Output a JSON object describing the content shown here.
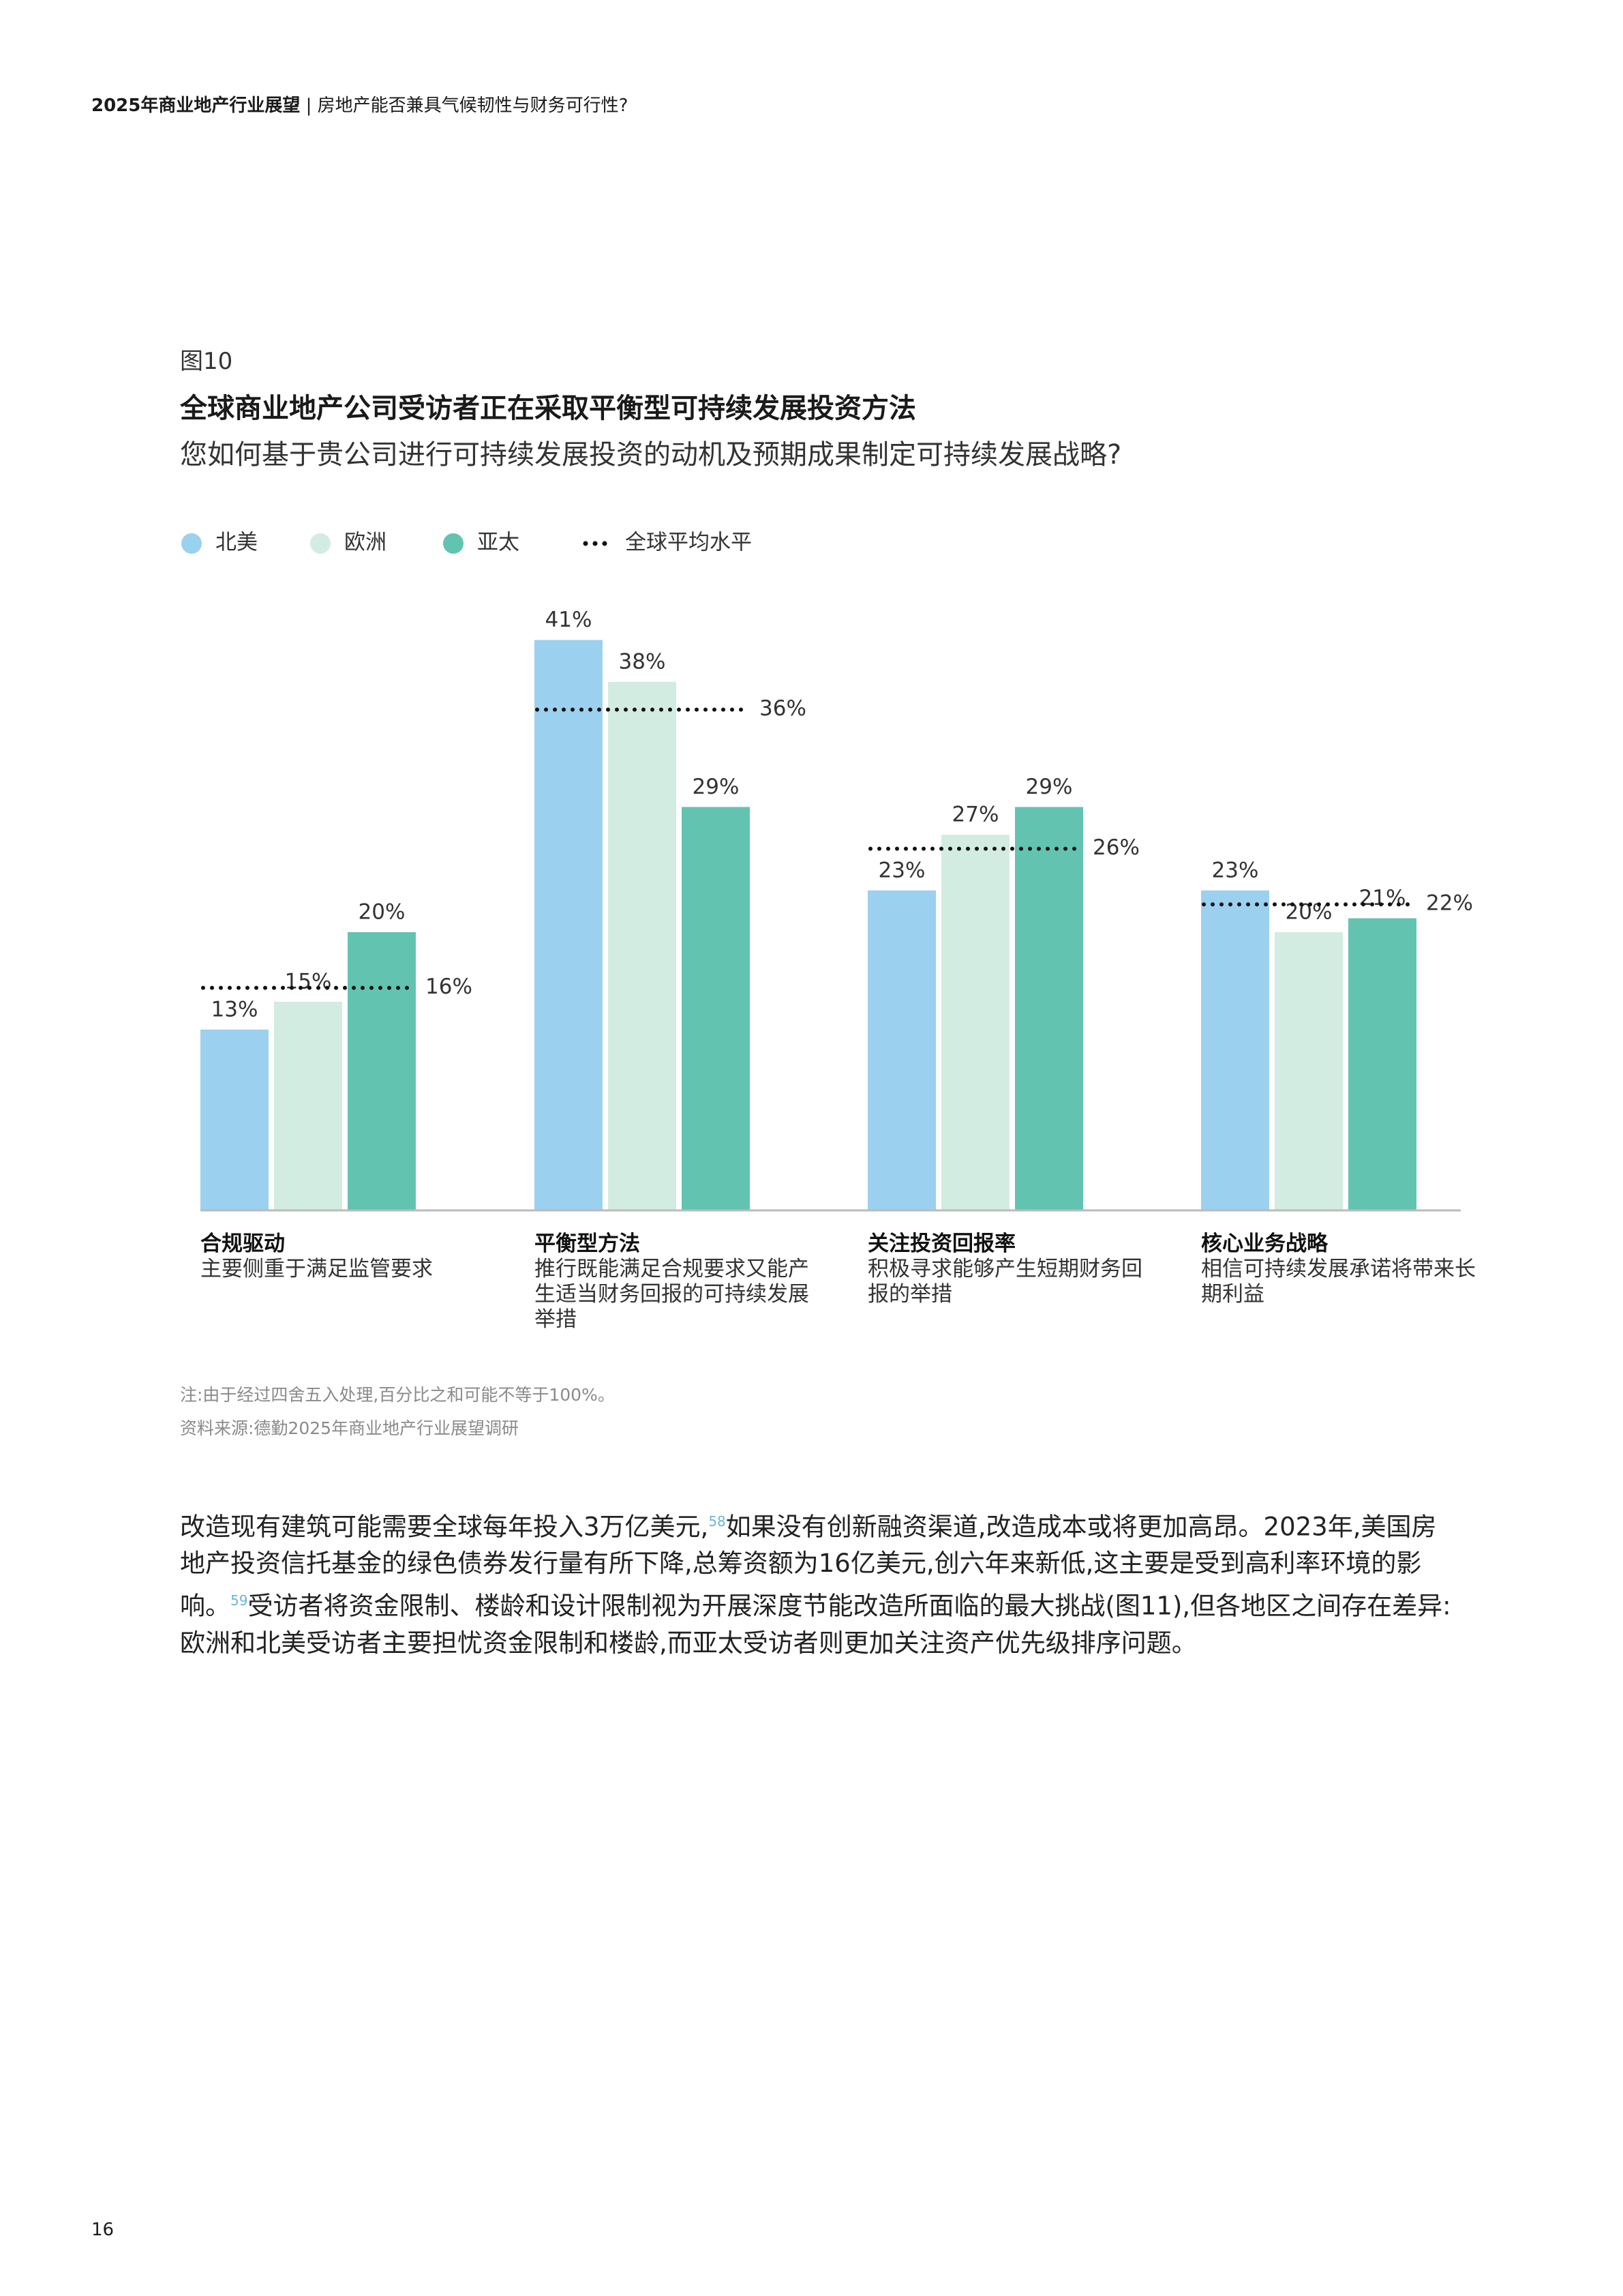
{
  "header": {
    "report": "2025年商业地产行业展望",
    "separator": "|",
    "section": "房地产能否兼具气候韧性与财务可行性?"
  },
  "chart_data": {
    "type": "bar",
    "figure_label": "图10",
    "title": "全球商业地产公司受访者正在采取平衡型可持续发展投资方法",
    "subtitle": "您如何基于贵公司进行可持续发展投资的动机及预期成果制定可持续发展战略?",
    "legend": "top-left",
    "categories": [
      "合规驱动",
      "平衡型方法",
      "关注投资回报率",
      "核心业务战略"
    ],
    "category_descriptions": [
      "主要侧重于满足监管要求",
      "推行既能满足合规要求又能产生适当财务回报的可持续发展举措",
      "积极寻求能够产生短期财务回报的举措",
      "相信可持续发展承诺将带来长期利益"
    ],
    "series": [
      {
        "name": "北美",
        "color": "#9bd0ef",
        "values": [
          13,
          41,
          23,
          23
        ],
        "value_labels": [
          "13%",
          "41%",
          "23%",
          "23%"
        ]
      },
      {
        "name": "欧洲",
        "color": "#d3ece2",
        "values": [
          15,
          38,
          27,
          20
        ],
        "value_labels": [
          "15%",
          "38%",
          "27%",
          "20%"
        ]
      },
      {
        "name": "亚太",
        "color": "#62c4b0",
        "values": [
          20,
          29,
          29,
          21
        ],
        "value_labels": [
          "20%",
          "29%",
          "29%",
          "21%"
        ]
      },
      {
        "name": "全球平均水平",
        "type": "dotted-line",
        "color": "#111111",
        "values": [
          16,
          36,
          26,
          22
        ],
        "value_labels": [
          "16%",
          "36%",
          "26%",
          "22%"
        ]
      }
    ]
  },
  "notes": [
    "注:由于经过四舍五入处理,百分比之和可能不等于100%。",
    "资料来源:德勤2025年商业地产行业展望调研"
  ],
  "body": [
    {
      "text": "改造现有建筑可能需要全球每年投入3万亿美元,"
    },
    {
      "sup": "58"
    },
    {
      "text": "如果没有创新融资渠道,改造成本或将更加高昂。2023年,美国房地产投资信托基金的绿色债券发行量有所下降,总筹资额为16亿美元,创六年来新低,这主要是受到高利率环境的影响。"
    },
    {
      "sup": "59"
    },
    {
      "text": "受访者将资金限制、楼龄和设计限制视为开展深度节能改造所面临的最大挑战(图11),但各地区之间存在差异:欧洲和北美受访者主要担忧资金限制和楼龄,而亚太受访者则更加关注资产优先级排序问题。"
    }
  ],
  "page_number": "16"
}
